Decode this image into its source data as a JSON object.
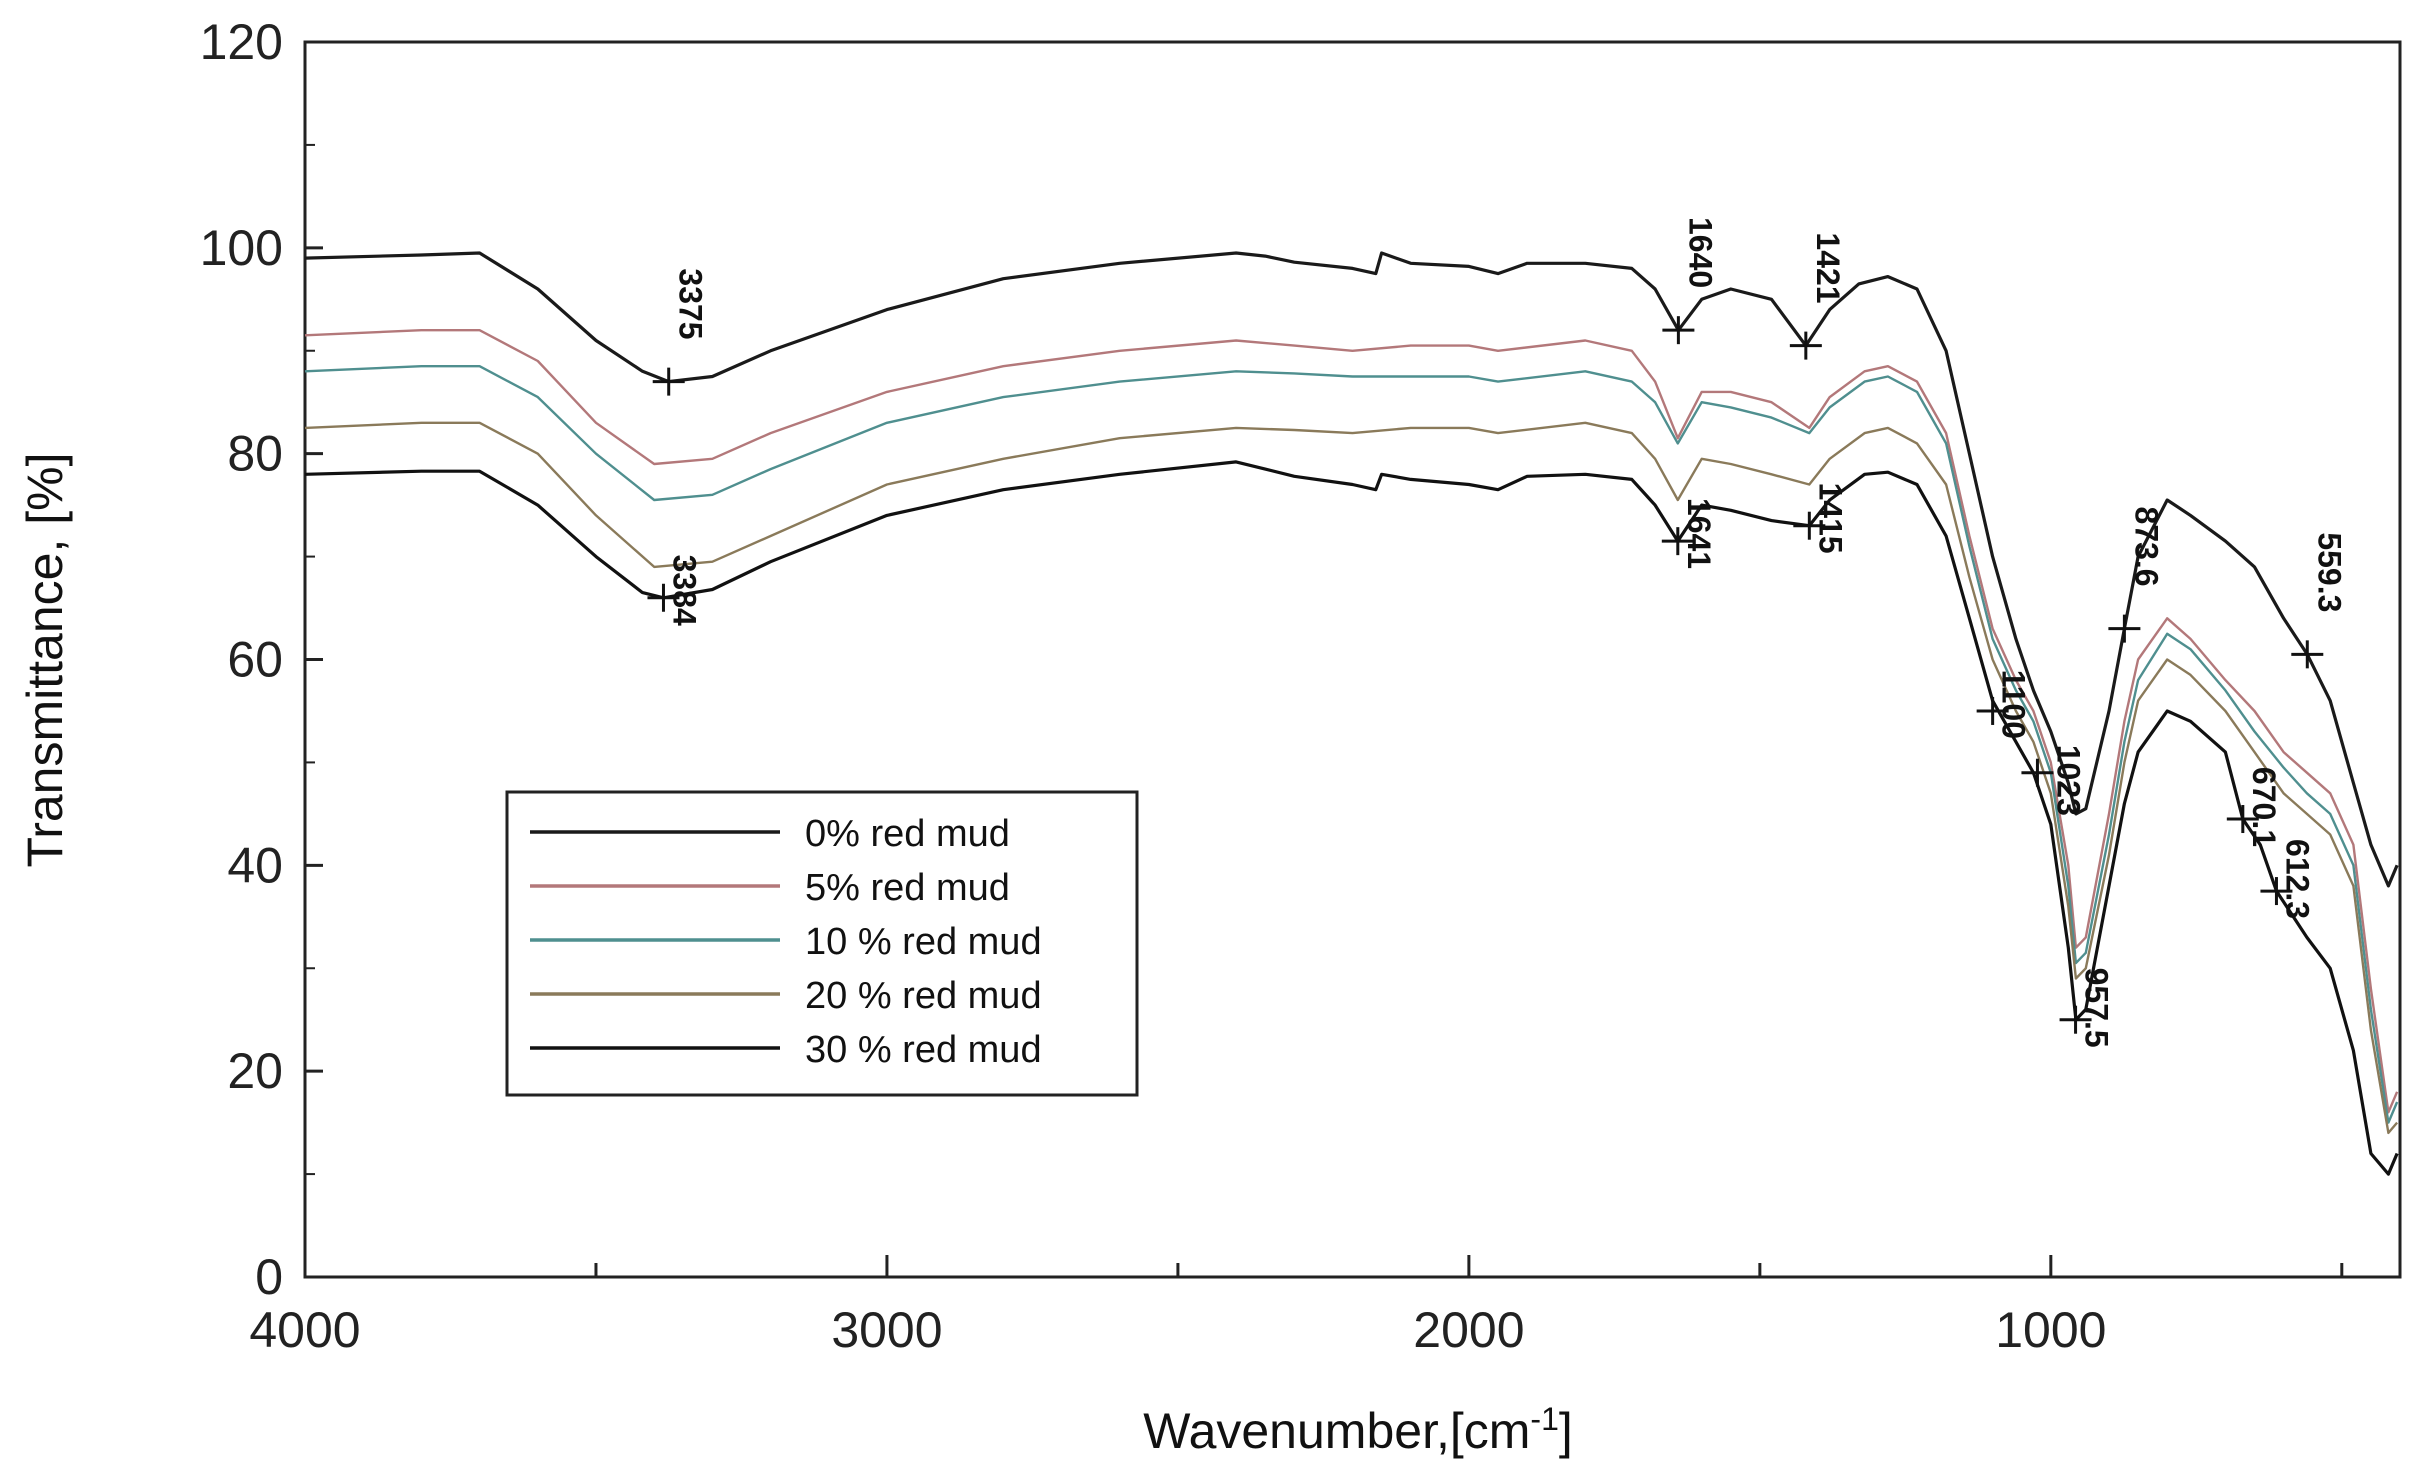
{
  "chart_data": {
    "type": "line",
    "title": "",
    "xlabel": "Wavenumber,[cm",
    "xlabel_sup": "-1",
    "xlabel_end": "]",
    "ylabel": "Transmittance, [%]",
    "xlim": [
      4000,
      400
    ],
    "ylim": [
      0,
      120
    ],
    "x_ticks": [
      4000,
      3000,
      2000,
      1000
    ],
    "x_tick_labels": [
      "4000",
      "3000",
      "2000",
      "1000"
    ],
    "x_minor_ticks": [
      3500,
      2500,
      1500,
      500
    ],
    "y_ticks": [
      0,
      20,
      40,
      60,
      80,
      100,
      120
    ],
    "y_tick_labels": [
      "0",
      "20",
      "40",
      "60",
      "80",
      "100",
      "120"
    ],
    "legend": {
      "position": "lower-left",
      "entries": [
        "0% red mud",
        "5% red mud",
        "10 % red mud",
        "20 % red mud",
        "30 % red mud"
      ]
    },
    "series": [
      {
        "name": "0% red mud",
        "color": "#1a1a1a",
        "points": [
          [
            4000,
            99
          ],
          [
            3800,
            99.3
          ],
          [
            3700,
            99.5
          ],
          [
            3600,
            96
          ],
          [
            3500,
            91
          ],
          [
            3420,
            88
          ],
          [
            3375,
            87
          ],
          [
            3300,
            87.5
          ],
          [
            3200,
            90
          ],
          [
            3000,
            94
          ],
          [
            2800,
            97
          ],
          [
            2600,
            98.5
          ],
          [
            2400,
            99.5
          ],
          [
            2350,
            99.2
          ],
          [
            2300,
            98.6
          ],
          [
            2200,
            98
          ],
          [
            2160,
            97.5
          ],
          [
            2150,
            99.5
          ],
          [
            2100,
            98.5
          ],
          [
            2000,
            98.2
          ],
          [
            1950,
            97.5
          ],
          [
            1900,
            98.5
          ],
          [
            1800,
            98.5
          ],
          [
            1720,
            98
          ],
          [
            1680,
            96
          ],
          [
            1640,
            92
          ],
          [
            1600,
            95
          ],
          [
            1550,
            96
          ],
          [
            1480,
            95
          ],
          [
            1421,
            90.5
          ],
          [
            1380,
            94
          ],
          [
            1330,
            96.5
          ],
          [
            1280,
            97.2
          ],
          [
            1230,
            96
          ],
          [
            1180,
            90
          ],
          [
            1140,
            80
          ],
          [
            1100,
            70
          ],
          [
            1060,
            62
          ],
          [
            1030,
            57
          ],
          [
            1000,
            53
          ],
          [
            970,
            48
          ],
          [
            957,
            45
          ],
          [
            940,
            45.5
          ],
          [
            900,
            55
          ],
          [
            873.6,
            63
          ],
          [
            850,
            70
          ],
          [
            800,
            75.5
          ],
          [
            760,
            74
          ],
          [
            700,
            71.5
          ],
          [
            650,
            69
          ],
          [
            600,
            64
          ],
          [
            559.3,
            60.5
          ],
          [
            520,
            56
          ],
          [
            480,
            48
          ],
          [
            450,
            42
          ],
          [
            420,
            38
          ],
          [
            405,
            40
          ]
        ]
      },
      {
        "name": "5% red mud",
        "color": "#b3787a",
        "points": [
          [
            4000,
            91.5
          ],
          [
            3800,
            92
          ],
          [
            3700,
            92
          ],
          [
            3600,
            89
          ],
          [
            3500,
            83
          ],
          [
            3400,
            79
          ],
          [
            3300,
            79.5
          ],
          [
            3200,
            82
          ],
          [
            3000,
            86
          ],
          [
            2800,
            88.5
          ],
          [
            2600,
            90
          ],
          [
            2400,
            91
          ],
          [
            2300,
            90.5
          ],
          [
            2200,
            90
          ],
          [
            2100,
            90.5
          ],
          [
            2000,
            90.5
          ],
          [
            1950,
            90
          ],
          [
            1800,
            91
          ],
          [
            1720,
            90
          ],
          [
            1680,
            87
          ],
          [
            1641,
            81.5
          ],
          [
            1600,
            86
          ],
          [
            1550,
            86
          ],
          [
            1480,
            85
          ],
          [
            1415,
            82.5
          ],
          [
            1380,
            85.5
          ],
          [
            1320,
            88
          ],
          [
            1280,
            88.5
          ],
          [
            1230,
            87
          ],
          [
            1180,
            82
          ],
          [
            1140,
            72
          ],
          [
            1100,
            63
          ],
          [
            1060,
            58
          ],
          [
            1030,
            55
          ],
          [
            1000,
            50
          ],
          [
            970,
            40
          ],
          [
            957,
            32
          ],
          [
            940,
            33
          ],
          [
            900,
            45
          ],
          [
            873.6,
            54
          ],
          [
            850,
            60
          ],
          [
            800,
            64
          ],
          [
            760,
            62
          ],
          [
            700,
            58
          ],
          [
            650,
            55
          ],
          [
            600,
            51
          ],
          [
            560,
            49
          ],
          [
            520,
            47
          ],
          [
            480,
            42
          ],
          [
            450,
            28
          ],
          [
            420,
            16
          ],
          [
            405,
            18
          ]
        ]
      },
      {
        "name": "10 % red mud",
        "color": "#4f8f8f",
        "points": [
          [
            4000,
            88
          ],
          [
            3800,
            88.5
          ],
          [
            3700,
            88.5
          ],
          [
            3600,
            85.5
          ],
          [
            3500,
            80
          ],
          [
            3400,
            75.5
          ],
          [
            3300,
            76
          ],
          [
            3200,
            78.5
          ],
          [
            3000,
            83
          ],
          [
            2800,
            85.5
          ],
          [
            2600,
            87
          ],
          [
            2400,
            88
          ],
          [
            2300,
            87.8
          ],
          [
            2200,
            87.5
          ],
          [
            2100,
            87.5
          ],
          [
            2000,
            87.5
          ],
          [
            1950,
            87
          ],
          [
            1800,
            88
          ],
          [
            1720,
            87
          ],
          [
            1680,
            85
          ],
          [
            1641,
            81
          ],
          [
            1600,
            85
          ],
          [
            1550,
            84.5
          ],
          [
            1480,
            83.5
          ],
          [
            1415,
            82
          ],
          [
            1380,
            84.5
          ],
          [
            1320,
            87
          ],
          [
            1280,
            87.5
          ],
          [
            1230,
            86
          ],
          [
            1180,
            81
          ],
          [
            1140,
            71
          ],
          [
            1100,
            62
          ],
          [
            1060,
            57
          ],
          [
            1030,
            54
          ],
          [
            1000,
            49
          ],
          [
            970,
            38
          ],
          [
            957,
            30.5
          ],
          [
            940,
            31.5
          ],
          [
            900,
            43
          ],
          [
            873.6,
            52
          ],
          [
            850,
            58
          ],
          [
            800,
            62.5
          ],
          [
            760,
            61
          ],
          [
            700,
            57
          ],
          [
            650,
            53
          ],
          [
            600,
            49.5
          ],
          [
            560,
            47
          ],
          [
            520,
            45
          ],
          [
            480,
            40
          ],
          [
            450,
            26
          ],
          [
            420,
            15
          ],
          [
            405,
            17
          ]
        ]
      },
      {
        "name": "20 % red mud",
        "color": "#8a7a5a",
        "points": [
          [
            4000,
            82.5
          ],
          [
            3800,
            83
          ],
          [
            3700,
            83
          ],
          [
            3600,
            80
          ],
          [
            3500,
            74
          ],
          [
            3400,
            69
          ],
          [
            3300,
            69.5
          ],
          [
            3200,
            72
          ],
          [
            3000,
            77
          ],
          [
            2800,
            79.5
          ],
          [
            2600,
            81.5
          ],
          [
            2400,
            82.5
          ],
          [
            2300,
            82.3
          ],
          [
            2200,
            82
          ],
          [
            2100,
            82.5
          ],
          [
            2000,
            82.5
          ],
          [
            1950,
            82
          ],
          [
            1800,
            83
          ],
          [
            1720,
            82
          ],
          [
            1680,
            79.5
          ],
          [
            1641,
            75.5
          ],
          [
            1600,
            79.5
          ],
          [
            1550,
            79
          ],
          [
            1480,
            78
          ],
          [
            1415,
            77
          ],
          [
            1380,
            79.5
          ],
          [
            1320,
            82
          ],
          [
            1280,
            82.5
          ],
          [
            1230,
            81
          ],
          [
            1180,
            77
          ],
          [
            1140,
            68
          ],
          [
            1100,
            60
          ],
          [
            1060,
            55
          ],
          [
            1030,
            52
          ],
          [
            1000,
            47
          ],
          [
            970,
            36
          ],
          [
            957,
            29
          ],
          [
            940,
            30
          ],
          [
            900,
            41
          ],
          [
            873.6,
            50
          ],
          [
            850,
            56
          ],
          [
            800,
            60
          ],
          [
            760,
            58.5
          ],
          [
            700,
            55
          ],
          [
            650,
            51
          ],
          [
            600,
            47
          ],
          [
            560,
            45
          ],
          [
            520,
            43
          ],
          [
            480,
            38
          ],
          [
            450,
            24
          ],
          [
            420,
            14
          ],
          [
            405,
            15
          ]
        ]
      },
      {
        "name": "30 % red mud",
        "color": "#111111",
        "points": [
          [
            4000,
            78
          ],
          [
            3800,
            78.3
          ],
          [
            3700,
            78.3
          ],
          [
            3600,
            75
          ],
          [
            3500,
            70
          ],
          [
            3420,
            66.5
          ],
          [
            3384,
            66
          ],
          [
            3300,
            66.8
          ],
          [
            3200,
            69.5
          ],
          [
            3000,
            74
          ],
          [
            2800,
            76.5
          ],
          [
            2600,
            78
          ],
          [
            2400,
            79.2
          ],
          [
            2350,
            78.5
          ],
          [
            2300,
            77.8
          ],
          [
            2200,
            77
          ],
          [
            2160,
            76.5
          ],
          [
            2150,
            78
          ],
          [
            2100,
            77.5
          ],
          [
            2000,
            77
          ],
          [
            1950,
            76.5
          ],
          [
            1900,
            77.8
          ],
          [
            1800,
            78
          ],
          [
            1720,
            77.5
          ],
          [
            1680,
            75
          ],
          [
            1641,
            71.5
          ],
          [
            1600,
            75
          ],
          [
            1550,
            74.5
          ],
          [
            1480,
            73.5
          ],
          [
            1415,
            73
          ],
          [
            1380,
            75.5
          ],
          [
            1320,
            78
          ],
          [
            1280,
            78.2
          ],
          [
            1230,
            77
          ],
          [
            1180,
            72
          ],
          [
            1140,
            64
          ],
          [
            1100,
            56
          ],
          [
            1060,
            52
          ],
          [
            1030,
            49
          ],
          [
            1000,
            44
          ],
          [
            970,
            32
          ],
          [
            957,
            25
          ],
          [
            940,
            26
          ],
          [
            900,
            38
          ],
          [
            873.6,
            46
          ],
          [
            850,
            51
          ],
          [
            800,
            55
          ],
          [
            760,
            54
          ],
          [
            700,
            51
          ],
          [
            670.1,
            44.5
          ],
          [
            640,
            42
          ],
          [
            612.3,
            37.5
          ],
          [
            560,
            33
          ],
          [
            520,
            30
          ],
          [
            480,
            22
          ],
          [
            450,
            12
          ],
          [
            420,
            10
          ],
          [
            405,
            12
          ]
        ]
      }
    ],
    "annotations": [
      {
        "label": "3375",
        "x": 3375,
        "y": 87,
        "placement": "above"
      },
      {
        "label": "1640",
        "x": 1640,
        "y": 92,
        "placement": "above"
      },
      {
        "label": "1421",
        "x": 1421,
        "y": 90.5,
        "placement": "above"
      },
      {
        "label": "3384",
        "x": 3384,
        "y": 66,
        "placement": "below"
      },
      {
        "label": "1641",
        "x": 1641,
        "y": 71.5,
        "placement": "below"
      },
      {
        "label": "1415",
        "x": 1415,
        "y": 73,
        "placement": "below"
      },
      {
        "label": "1100",
        "x": 1100,
        "y": 55,
        "placement": "below"
      },
      {
        "label": "1023",
        "x": 1023,
        "y": 49,
        "placement": "side"
      },
      {
        "label": "873.6",
        "x": 873.6,
        "y": 63,
        "placement": "above"
      },
      {
        "label": "559.3",
        "x": 559.3,
        "y": 60.5,
        "placement": "above"
      },
      {
        "label": "957.5",
        "x": 957.5,
        "y": 25,
        "placement": "below"
      },
      {
        "label": "670.1",
        "x": 670.1,
        "y": 44.5,
        "placement": "below"
      },
      {
        "label": "612.3",
        "x": 612.3,
        "y": 37.5,
        "placement": "below"
      }
    ]
  }
}
